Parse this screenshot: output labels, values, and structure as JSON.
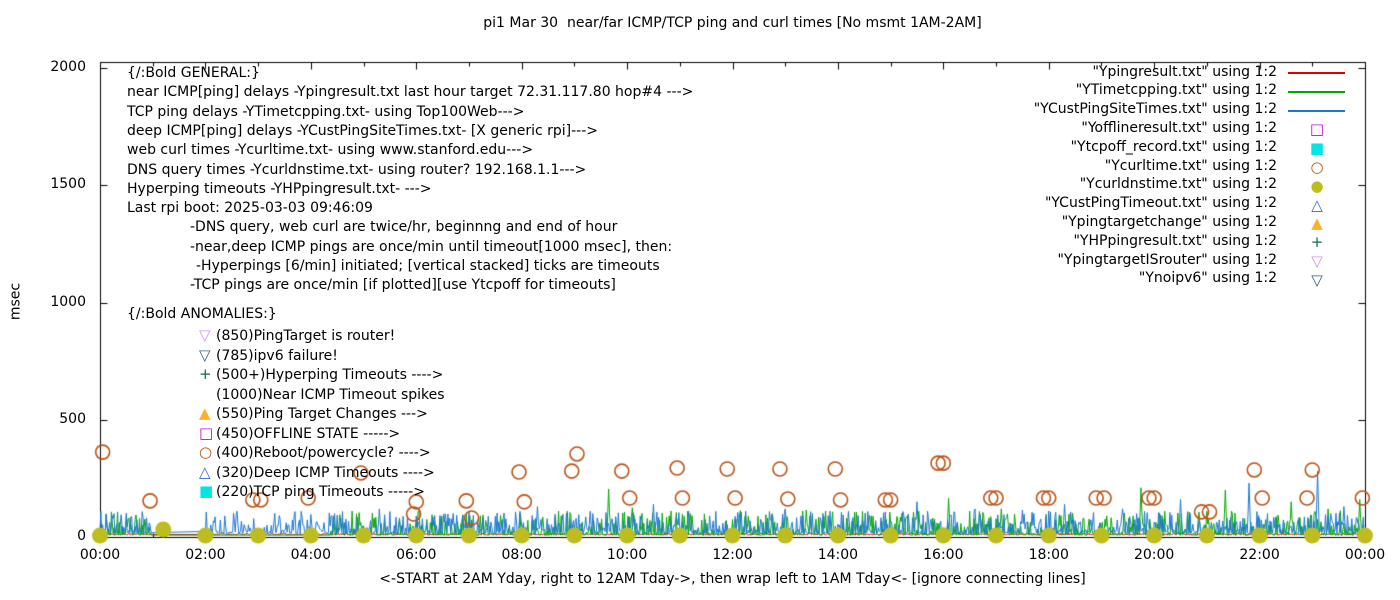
{
  "chart_data": {
    "type": "line+scatter",
    "title": "pi1 Mar 30  near/far ICMP/TCP ping and curl times [No msmt 1AM-2AM]",
    "ylabel": "msec",
    "xlabel_caption": "<-START at 2AM Yday, right to 12AM Tday->, then wrap left to 1AM Tday<- [ignore connecting lines]",
    "ylim": [
      0,
      2000
    ],
    "xlim_hours": [
      0,
      24
    ],
    "grid": false,
    "legend_position": "top-right",
    "y_tick_labels": [
      "0",
      "500",
      "1000",
      "1500",
      "2000"
    ],
    "y_tick_values": [
      0,
      500,
      1000,
      1500,
      2000
    ],
    "x_tick_labels": [
      "00:00",
      "02:00",
      "04:00",
      "06:00",
      "08:00",
      "10:00",
      "12:00",
      "14:00",
      "16:00",
      "18:00",
      "20:00",
      "22:00",
      "00:00"
    ],
    "x_tick_hours": [
      0,
      2,
      4,
      6,
      8,
      10,
      12,
      14,
      16,
      18,
      20,
      22,
      24
    ],
    "series": [
      {
        "name": "Ypingresult.txt",
        "legend": "\"Ypingresult.txt\" using 1:2",
        "style": "line",
        "color": "#dd0000",
        "base": 9,
        "amp": 8,
        "pow": 2,
        "gaps": [
          [
            1,
            2
          ]
        ],
        "spikes": []
      },
      {
        "name": "YTimetcpping.txt",
        "legend": "\"YTimetcpping.txt\" using 1:2",
        "style": "line",
        "color": "#00a800",
        "base": 8,
        "amp": 105,
        "pow": 4,
        "gaps": [
          [
            1,
            4.35
          ]
        ],
        "spikes": [
          [
            4.55,
            95
          ],
          [
            5.2,
            80
          ],
          [
            6.05,
            112
          ],
          [
            7.6,
            92
          ],
          [
            8.4,
            85
          ],
          [
            9.65,
            205
          ],
          [
            10.1,
            125
          ],
          [
            10.8,
            90
          ],
          [
            11.2,
            100
          ],
          [
            12.3,
            88
          ],
          [
            12.75,
            100
          ],
          [
            13.4,
            115
          ],
          [
            14.6,
            92
          ],
          [
            15.3,
            85
          ],
          [
            16.1,
            165
          ],
          [
            17.1,
            120
          ],
          [
            18.2,
            95
          ],
          [
            19.1,
            90
          ],
          [
            19.75,
            210
          ],
          [
            21.0,
            110
          ],
          [
            21.35,
            200
          ],
          [
            22.6,
            150
          ],
          [
            23.3,
            120
          ],
          [
            23.9,
            160
          ]
        ]
      },
      {
        "name": "YCustPingSiteTimes.txt",
        "legend": "\"YCustPingSiteTimes.txt\" using 1:2",
        "style": "line",
        "color": "#1e78d2",
        "base": 16,
        "amp": 95,
        "pow": 3.2,
        "gaps": [
          [
            1,
            2
          ]
        ],
        "spikes": [
          [
            0.4,
            95
          ],
          [
            2.6,
            110
          ],
          [
            5.3,
            120
          ],
          [
            6.7,
            100
          ],
          [
            8.3,
            130
          ],
          [
            9.3,
            110
          ],
          [
            10.5,
            140
          ],
          [
            12.1,
            105
          ],
          [
            13.0,
            120
          ],
          [
            14.2,
            110
          ],
          [
            15.5,
            150
          ],
          [
            16.6,
            120
          ],
          [
            17.5,
            115
          ],
          [
            18.3,
            140
          ],
          [
            19.4,
            120
          ],
          [
            20.5,
            160
          ],
          [
            21.8,
            230
          ],
          [
            23.1,
            280
          ],
          [
            23.6,
            130
          ]
        ]
      },
      {
        "name": "Yofflineresult.txt",
        "legend": "\"Yofflineresult.txt\" using 1:2",
        "style": "square-open",
        "color": "#cc00cc",
        "points": []
      },
      {
        "name": "Ytcpoff_record.txt",
        "legend": "\"Ytcpoff_record.txt\" using 1:2",
        "style": "square-filled",
        "color": "#00e5e5",
        "points": []
      },
      {
        "name": "Ycurltime.txt",
        "legend": "\"Ycurltime.txt\" using 1:2",
        "style": "circle-open",
        "color": "#bc5215",
        "points": [
          [
            0.05,
            362
          ],
          [
            0.95,
            154
          ],
          [
            2.9,
            158
          ],
          [
            3.05,
            158
          ],
          [
            3.95,
            166
          ],
          [
            4.95,
            273
          ],
          [
            5.95,
            98
          ],
          [
            6.0,
            150
          ],
          [
            6.95,
            154
          ],
          [
            7.05,
            81
          ],
          [
            7.95,
            277
          ],
          [
            8.05,
            150
          ],
          [
            8.95,
            281
          ],
          [
            9.05,
            354
          ],
          [
            9.9,
            281
          ],
          [
            10.05,
            166
          ],
          [
            10.95,
            294
          ],
          [
            11.05,
            166
          ],
          [
            11.9,
            290
          ],
          [
            12.05,
            166
          ],
          [
            12.9,
            290
          ],
          [
            13.05,
            162
          ],
          [
            13.95,
            290
          ],
          [
            14.05,
            158
          ],
          [
            14.9,
            158
          ],
          [
            15.0,
            158
          ],
          [
            15.9,
            315
          ],
          [
            16.0,
            315
          ],
          [
            16.9,
            166
          ],
          [
            17.0,
            166
          ],
          [
            17.9,
            166
          ],
          [
            18.0,
            166
          ],
          [
            18.9,
            166
          ],
          [
            19.05,
            166
          ],
          [
            19.9,
            166
          ],
          [
            20.0,
            166
          ],
          [
            20.9,
            107
          ],
          [
            21.05,
            107
          ],
          [
            21.9,
            286
          ],
          [
            22.05,
            166
          ],
          [
            22.9,
            166
          ],
          [
            23.0,
            286
          ],
          [
            23.95,
            166
          ]
        ]
      },
      {
        "name": "Ycurldnstime.txt",
        "legend": "\"Ycurldnstime.txt\" using 1:2",
        "style": "circle-filled",
        "color": "#bdbd20",
        "points": [
          [
            0,
            6
          ],
          [
            1.2,
            32
          ],
          [
            2,
            6
          ],
          [
            3,
            6
          ],
          [
            4,
            6
          ],
          [
            5,
            6
          ],
          [
            6,
            6
          ],
          [
            7,
            6
          ],
          [
            8,
            6
          ],
          [
            9,
            6
          ],
          [
            10,
            6
          ],
          [
            11,
            6
          ],
          [
            12,
            6
          ],
          [
            13,
            6
          ],
          [
            14,
            6
          ],
          [
            15,
            6
          ],
          [
            16,
            6
          ],
          [
            17,
            6
          ],
          [
            18,
            6
          ],
          [
            19,
            6
          ],
          [
            20,
            6
          ],
          [
            21,
            6
          ],
          [
            22,
            6
          ],
          [
            23,
            6
          ],
          [
            24,
            6
          ]
        ]
      },
      {
        "name": "YCustPingTimeout.txt",
        "legend": "\"YCustPingTimeout.txt\" using 1:2",
        "style": "triangle-up-open",
        "color": "#3465cd",
        "points": []
      },
      {
        "name": "Ypingtargetchange",
        "legend": "\"Ypingtargetchange\" using 1:2",
        "style": "triangle-up-filled",
        "color": "#fbb12e",
        "points": []
      },
      {
        "name": "YHPpingresult.txt",
        "legend": "\"YHPpingresult.txt\" using 1:2",
        "style": "plus",
        "color": "#0e6b4e",
        "points": []
      },
      {
        "name": "YpingtargetISrouter",
        "legend": "\"YpingtargetISrouter\" using 1:2",
        "style": "triangle-down-open",
        "color": "#cf94ec",
        "points": []
      },
      {
        "name": "Ynoipv6",
        "legend": "\"Ynoipv6\" using 1:2",
        "style": "triangle-down-open",
        "color": "#35607d",
        "points": []
      }
    ]
  },
  "annotations": {
    "general": {
      "lines": [
        {
          "text": "{/:Bold GENERAL:}",
          "indent": 0
        },
        {
          "text": "near ICMP[ping] delays -Ypingresult.txt last hour target 72.31.117.80 hop#4 --->",
          "indent": 0
        },
        {
          "text": "TCP ping delays -YTimetcpping.txt- using Top100Web--->",
          "indent": 0
        },
        {
          "text": "deep ICMP[ping] delays -YCustPingSiteTimes.txt- [X generic rpi]--->",
          "indent": 0
        },
        {
          "text": "web curl times -Ycurltime.txt- using www.stanford.edu--->",
          "indent": 0
        },
        {
          "text": "DNS query times -Ycurldnstime.txt- using router? 192.168.1.1--->",
          "indent": 0
        },
        {
          "text": "Hyperping timeouts -YHPpingresult.txt- --->",
          "indent": 0
        },
        {
          "text": "Last rpi boot: 2025-03-03 09:46:09",
          "indent": 0
        },
        {
          "text": "-DNS query, web curl are twice/hr, beginnng and end of hour",
          "indent": 1
        },
        {
          "text": "-near,deep ICMP pings are once/min until timeout[1000 msec], then:",
          "indent": 1
        },
        {
          "text": "-Hyperpings [6/min] initiated; [vertical stacked] ticks are timeouts",
          "indent": 2
        },
        {
          "text": "-TCP pings are once/min [if plotted][use Ytcpoff for timeouts]",
          "indent": 1
        }
      ]
    },
    "anomalies": {
      "header": "{/:Bold ANOMALIES:}",
      "rows": [
        {
          "marker": "triangle-down-open",
          "color": "#cf94ec",
          "text": "(850)PingTarget is router!"
        },
        {
          "marker": "triangle-down-open",
          "color": "#35607d",
          "text": "(785)ipv6 failure!"
        },
        {
          "marker": "plus",
          "color": "#0e6b4e",
          "text": "(500+)Hyperping Timeouts ---->"
        },
        {
          "marker": "none",
          "color": "",
          "text": "(1000)Near ICMP Timeout spikes"
        },
        {
          "marker": "triangle-up-filled",
          "color": "#fbb12e",
          "text": "(550)Ping Target Changes --->"
        },
        {
          "marker": "square-open",
          "color": "#cc00cc",
          "text": "(450)OFFLINE STATE ----->"
        },
        {
          "marker": "circle-open",
          "color": "#bc5215",
          "text": "(400)Reboot/powercycle? ---->"
        },
        {
          "marker": "triangle-up-open",
          "color": "#3465cd",
          "text": "(320)Deep ICMP Timeouts ---->"
        },
        {
          "marker": "square-filled",
          "color": "#00e5e5",
          "text": "(220)TCP ping Timeouts ----->"
        }
      ]
    }
  }
}
